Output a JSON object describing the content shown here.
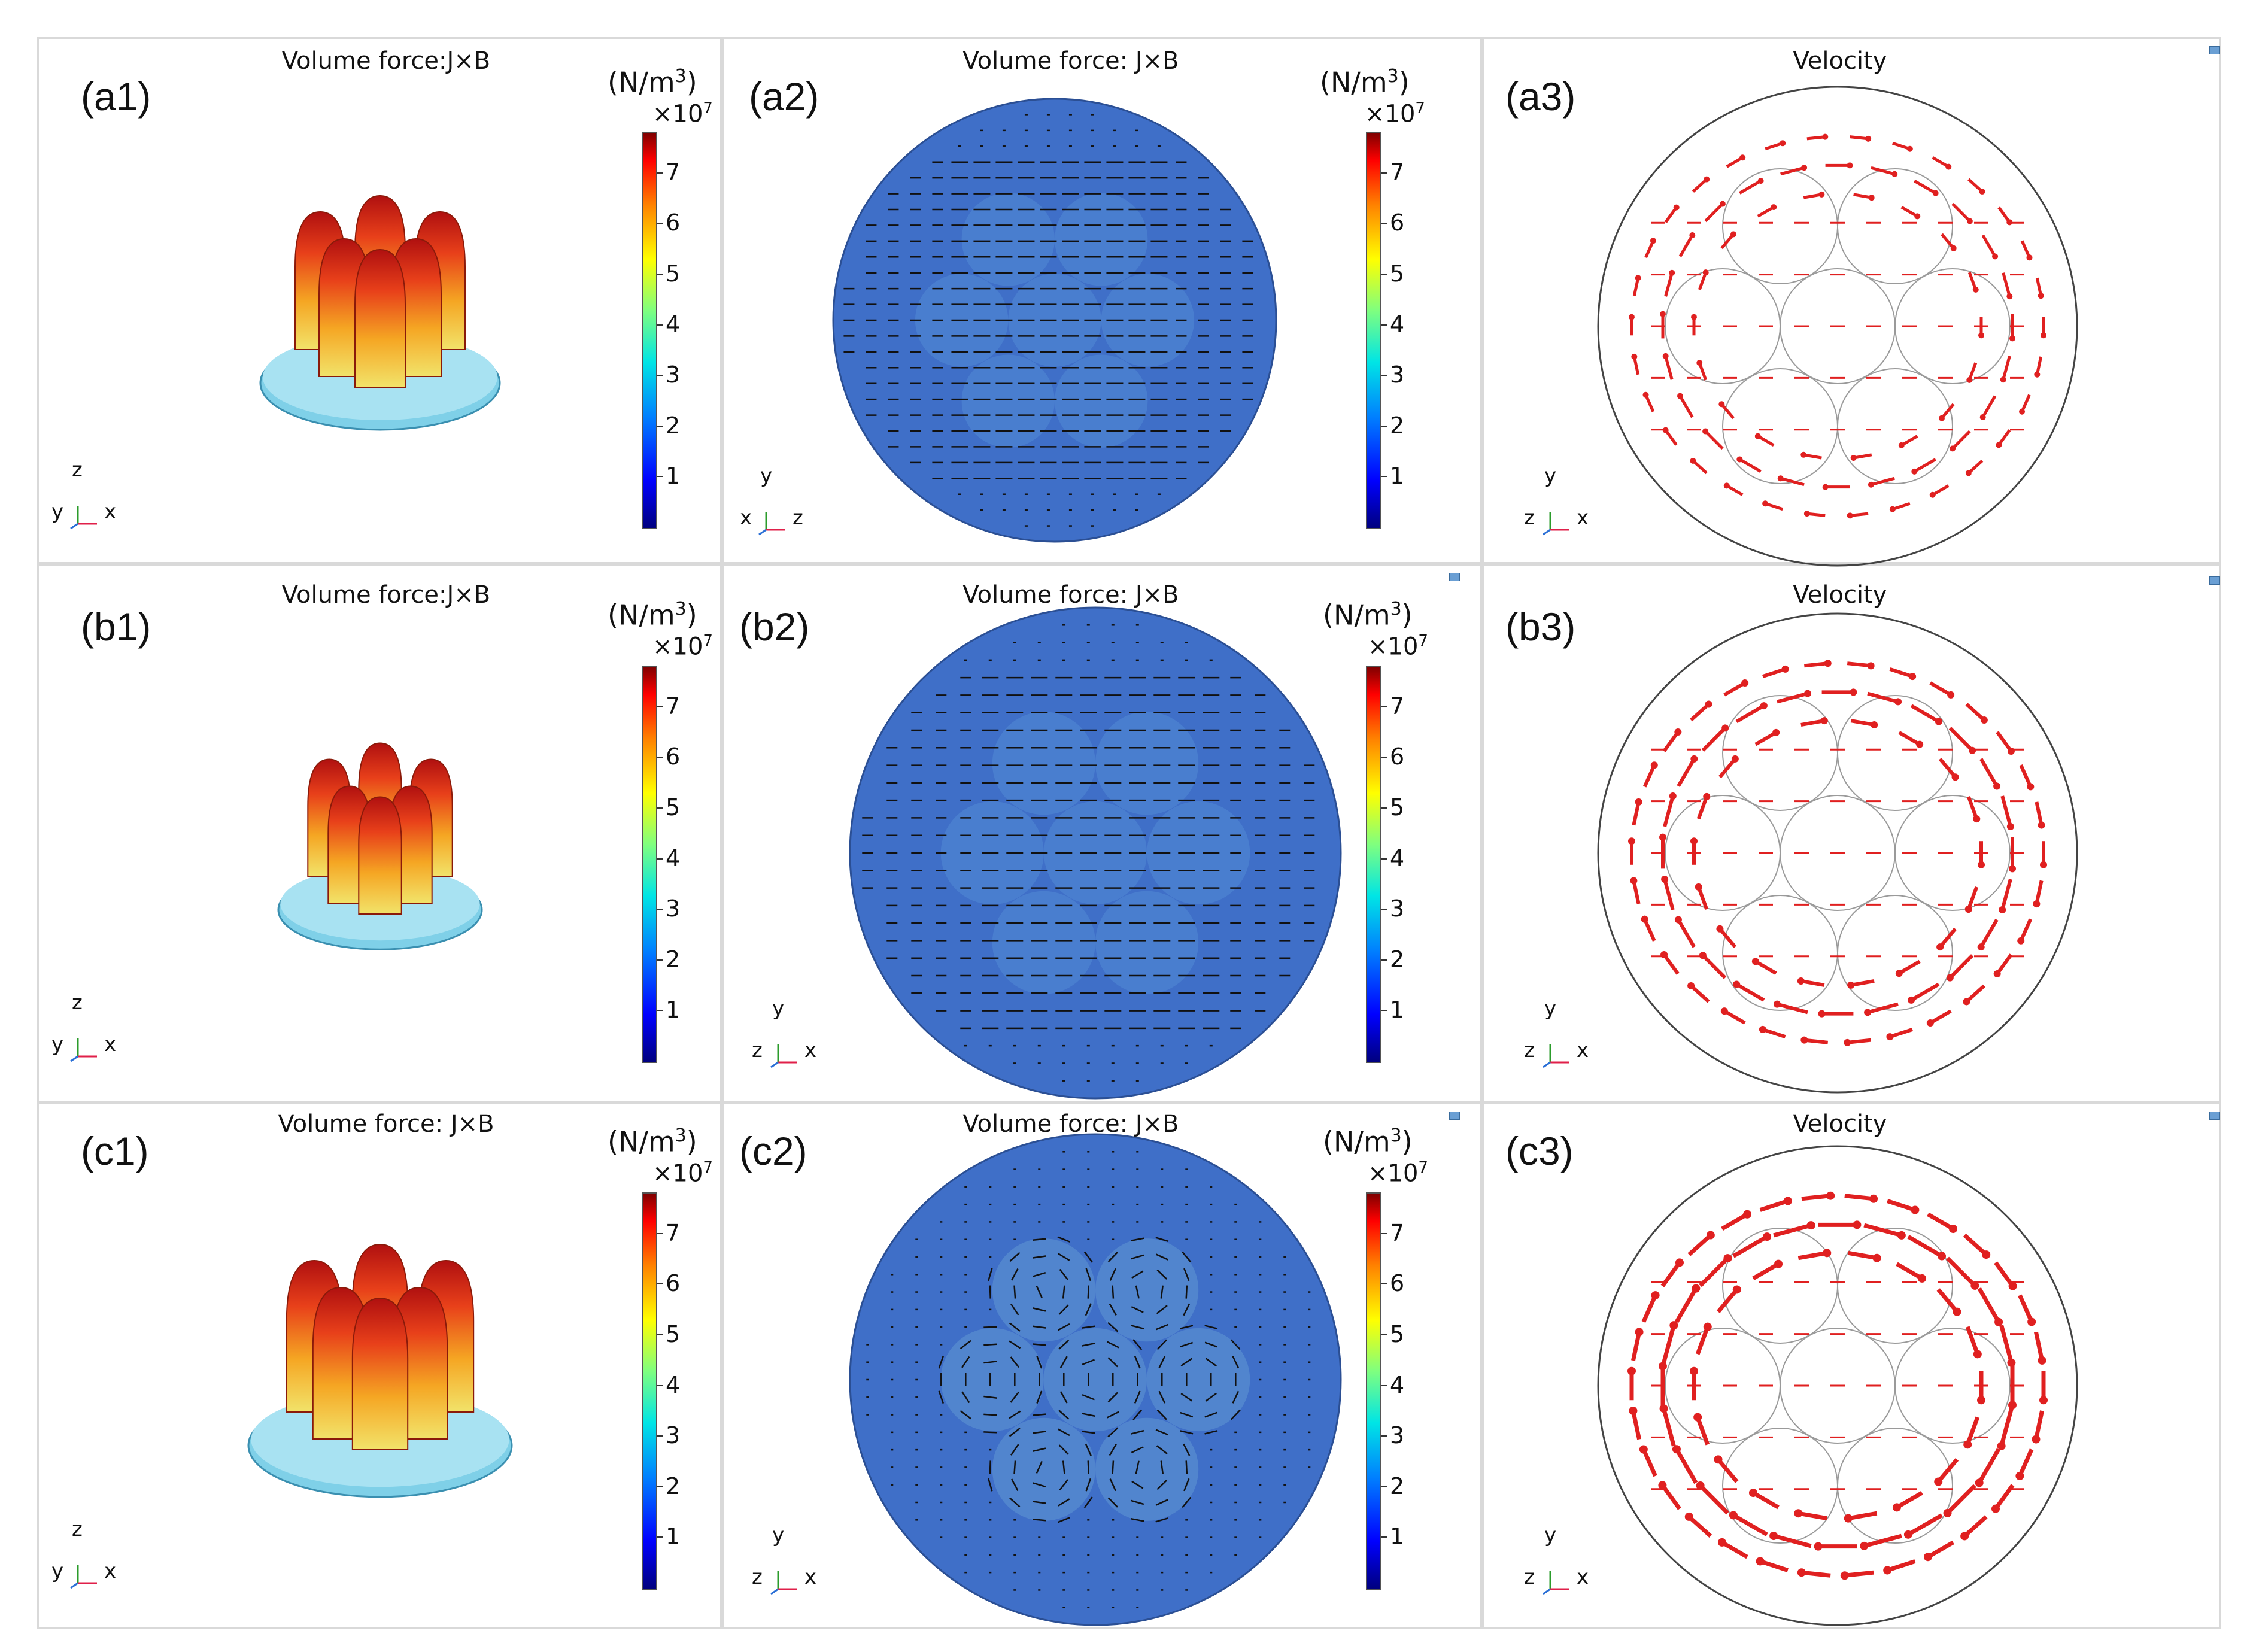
{
  "colorbar": {
    "unit": "(N/m",
    "unit_exp": "3",
    "unit_close": ")",
    "scale": "×10",
    "scale_exp": "7",
    "ticks": [
      "7",
      "6",
      "5",
      "4",
      "3",
      "2",
      "1"
    ]
  },
  "rows": [
    {
      "panels": [
        {
          "label": "(a1)",
          "title": "Volume force:J×B",
          "axes": {
            "v": "z",
            "h1": "y",
            "h2": "x"
          }
        },
        {
          "label": "(a2)",
          "title": "Volume force: J×B",
          "axes": {
            "v": "y",
            "h1": "x",
            "h2": "z"
          }
        },
        {
          "label": "(a3)",
          "title": "Velocity",
          "axes": {
            "v": "y",
            "h1": "z",
            "h2": "x"
          }
        }
      ]
    },
    {
      "panels": [
        {
          "label": "(b1)",
          "title": "Volume force:J×B",
          "axes": {
            "v": "z",
            "h1": "y",
            "h2": "x"
          }
        },
        {
          "label": "(b2)",
          "title": "Volume force: J×B",
          "axes": {
            "v": "y",
            "h1": "z",
            "h2": "x"
          }
        },
        {
          "label": "(b3)",
          "title": "Velocity",
          "axes": {
            "v": "y",
            "h1": "z",
            "h2": "x"
          }
        }
      ]
    },
    {
      "panels": [
        {
          "label": "(c1)",
          "title": "Volume force: J×B",
          "axes": {
            "v": "z",
            "h1": "y",
            "h2": "x"
          }
        },
        {
          "label": "(c2)",
          "title": "Volume force: J×B",
          "axes": {
            "v": "y",
            "h1": "z",
            "h2": "x"
          }
        },
        {
          "label": "(c3)",
          "title": "Velocity",
          "axes": {
            "v": "y",
            "h1": "z",
            "h2": "x"
          }
        }
      ]
    }
  ],
  "colors": {
    "disc": "#3f6fc8",
    "disc_edge": "#2b4f94",
    "velocity_arrow": "#e02020",
    "force_arrow": "#111111",
    "axis_x": "#e0204a",
    "axis_y": "#2c9c2c",
    "axis_z": "#2a6fd6"
  }
}
